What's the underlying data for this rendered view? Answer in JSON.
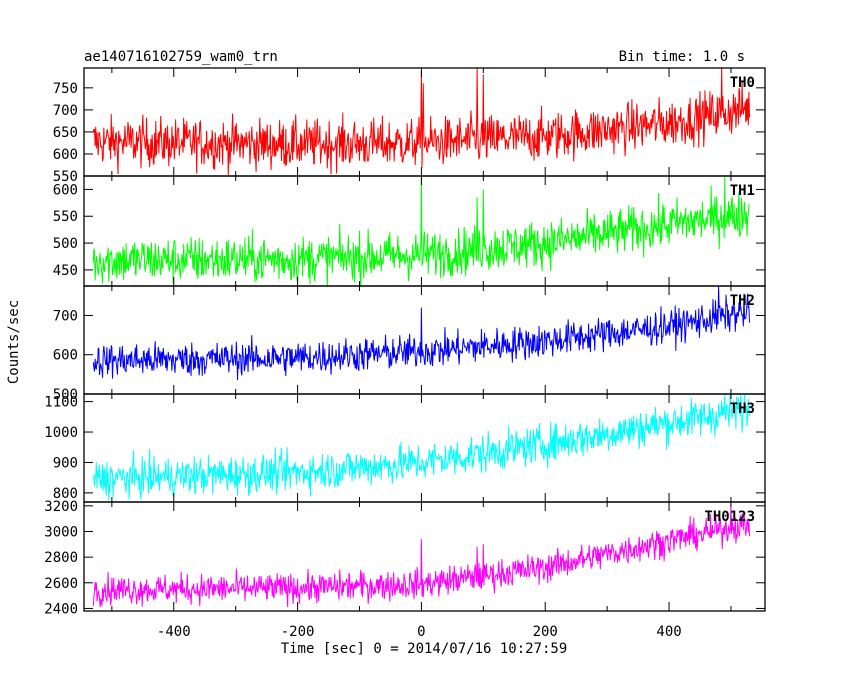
{
  "chart_data": {
    "type": "line",
    "title": "ae140716102759_wam0_trn",
    "subtitle": "Bin time: 1.0 s",
    "xlabel": "Time [sec] 0 = 2014/07/16 10:27:59",
    "ylabel": "Counts/sec",
    "xlim": [
      -545,
      555
    ],
    "x_ticks": [
      -400,
      -200,
      0,
      200,
      400
    ],
    "x_range_data": [
      -530,
      530
    ],
    "grid": false,
    "legend": "none",
    "panels": [
      {
        "name": "TH0",
        "color": "#ff0000",
        "ylim": [
          550,
          795
        ],
        "y_ticks": [
          550,
          600,
          650,
          700,
          750
        ],
        "trend": [
          [
            -530,
            628
          ],
          [
            -200,
            622
          ],
          [
            0,
            625
          ],
          [
            200,
            640
          ],
          [
            400,
            670
          ],
          [
            530,
            705
          ]
        ],
        "noise": 28,
        "spikes": [
          [
            0,
            790
          ],
          [
            3,
            760
          ],
          [
            90,
            795
          ],
          [
            100,
            780
          ],
          [
            485,
            798
          ]
        ]
      },
      {
        "name": "TH1",
        "color": "#00ff00",
        "ylim": [
          420,
          625
        ],
        "y_ticks": [
          450,
          500,
          550,
          600
        ],
        "trend": [
          [
            -530,
            468
          ],
          [
            -200,
            470
          ],
          [
            0,
            478
          ],
          [
            200,
            500
          ],
          [
            400,
            535
          ],
          [
            530,
            555
          ]
        ],
        "noise": 22,
        "spikes": [
          [
            0,
            625
          ],
          [
            90,
            585
          ],
          [
            100,
            600
          ],
          [
            490,
            625
          ]
        ]
      },
      {
        "name": "TH2",
        "color": "#0000ff",
        "ylim": [
          500,
          775
        ],
        "y_ticks": [
          500,
          600,
          700
        ],
        "trend": [
          [
            -530,
            585
          ],
          [
            -200,
            592
          ],
          [
            0,
            608
          ],
          [
            200,
            635
          ],
          [
            400,
            672
          ],
          [
            530,
            710
          ]
        ],
        "noise": 22,
        "spikes": [
          [
            0,
            720
          ],
          [
            480,
            775
          ]
        ]
      },
      {
        "name": "TH3",
        "color": "#00ffff",
        "ylim": [
          770,
          1125
        ],
        "y_ticks": [
          800,
          900,
          1000,
          1100
        ],
        "trend": [
          [
            -530,
            845
          ],
          [
            -200,
            868
          ],
          [
            0,
            900
          ],
          [
            200,
            960
          ],
          [
            400,
            1030
          ],
          [
            530,
            1075
          ]
        ],
        "noise": 32,
        "spikes": [
          [
            490,
            1125
          ]
        ]
      },
      {
        "name": "TH0123",
        "color": "#ff00ff",
        "ylim": [
          2380,
          3230
        ],
        "y_ticks": [
          2400,
          2600,
          2800,
          3000,
          3200
        ],
        "trend": [
          [
            -530,
            2545
          ],
          [
            -200,
            2560
          ],
          [
            0,
            2590
          ],
          [
            200,
            2720
          ],
          [
            400,
            2930
          ],
          [
            530,
            3060
          ]
        ],
        "noise": 58,
        "spikes": [
          [
            0,
            2940
          ],
          [
            90,
            2880
          ],
          [
            100,
            2900
          ],
          [
            500,
            3215
          ]
        ]
      }
    ]
  }
}
